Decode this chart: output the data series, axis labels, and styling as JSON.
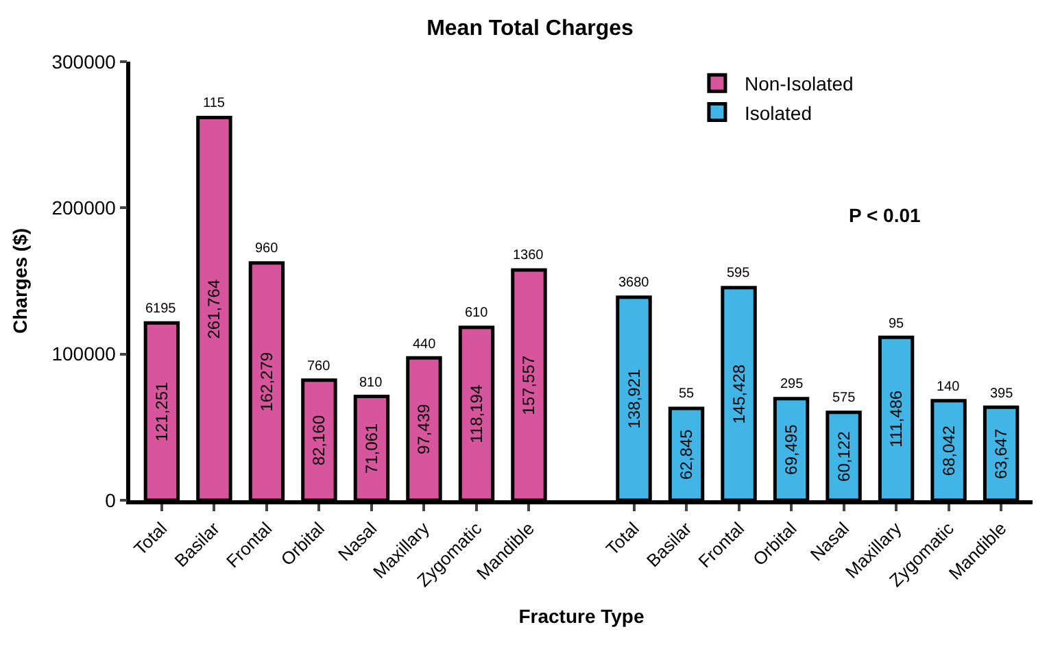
{
  "chart_data": {
    "type": "bar",
    "title": "Mean Total Charges",
    "xlabel": "Fracture Type",
    "ylabel": "Charges ($)",
    "categories": [
      "Total",
      "Basilar",
      "Frontal",
      "Orbital",
      "Nasal",
      "Maxillary",
      "Zygomatic",
      "Mandible",
      null,
      "Total",
      "Basilar",
      "Frontal",
      "Orbital",
      "Nasal",
      "Maxillary",
      "Zygomatic",
      "Mandible"
    ],
    "series": [
      {
        "name": "Non-Isolated",
        "color": "#d6559c",
        "values": [
          121251,
          261764,
          162279,
          82160,
          71061,
          97439,
          118194,
          157557,
          null,
          null,
          null,
          null,
          null,
          null,
          null,
          null,
          null
        ],
        "value_labels": [
          "121,251",
          "261,764",
          "162,279",
          "82,160",
          "71,061",
          "97,439",
          "118,194",
          "157,557",
          null,
          null,
          null,
          null,
          null,
          null,
          null,
          null,
          null
        ]
      },
      {
        "name": "Isolated",
        "color": "#41b6e6",
        "values": [
          null,
          null,
          null,
          null,
          null,
          null,
          null,
          null,
          null,
          138921,
          62845,
          145428,
          69495,
          60122,
          111486,
          68042,
          63647
        ],
        "value_labels": [
          null,
          null,
          null,
          null,
          null,
          null,
          null,
          null,
          null,
          "138,921",
          "62,845",
          "145,428",
          "69,495",
          "60,122",
          "111,486",
          "68,042",
          "63,647"
        ]
      }
    ],
    "ylim": [
      0,
      300000
    ],
    "yticks": [
      0,
      100000,
      200000,
      300000
    ],
    "legend": "top right",
    "annotations": [
      "P < 0.01",
      "6195",
      "115",
      "960",
      "760",
      "810",
      "440",
      "610",
      "1360",
      "3680",
      "55",
      "595",
      "295",
      "575",
      "95",
      "140",
      "395"
    ]
  }
}
